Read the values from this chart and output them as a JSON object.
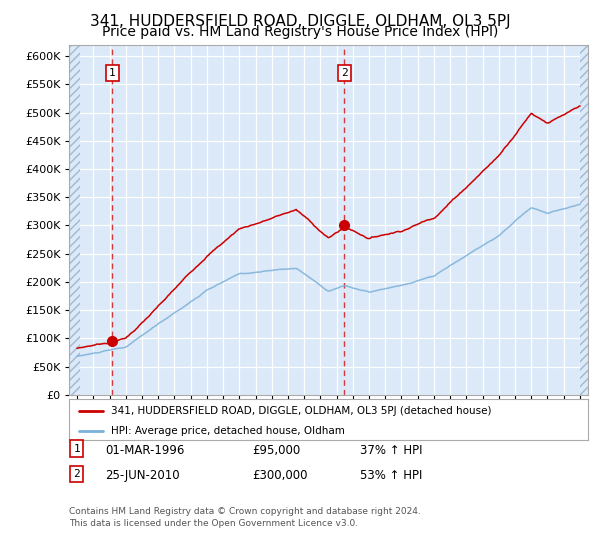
{
  "title": "341, HUDDERSFIELD ROAD, DIGGLE, OLDHAM, OL3 5PJ",
  "subtitle": "Price paid vs. HM Land Registry's House Price Index (HPI)",
  "ylim": [
    0,
    620000
  ],
  "yticks": [
    0,
    50000,
    100000,
    150000,
    200000,
    250000,
    300000,
    350000,
    400000,
    450000,
    500000,
    550000,
    600000
  ],
  "xlim_start": 1993.5,
  "xlim_end": 2025.5,
  "bg_color": "#dce9f8",
  "fig_bg": "#ffffff",
  "grid_color": "#ffffff",
  "red_line_color": "#cc0000",
  "blue_line_color": "#7ab0d8",
  "sale1_date": 1996.17,
  "sale1_price": 95000,
  "sale2_date": 2010.48,
  "sale2_price": 300000,
  "legend_label_red": "341, HUDDERSFIELD ROAD, DIGGLE, OLDHAM, OL3 5PJ (detached house)",
  "legend_label_blue": "HPI: Average price, detached house, Oldham",
  "footer": "Contains HM Land Registry data © Crown copyright and database right 2024.\nThis data is licensed under the Open Government Licence v3.0.",
  "title_fontsize": 11,
  "subtitle_fontsize": 10
}
